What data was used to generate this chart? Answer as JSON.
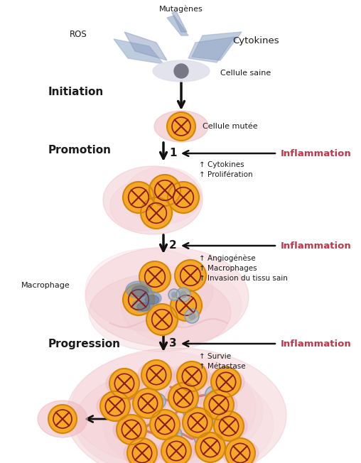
{
  "bg_color": "#ffffff",
  "figsize": [
    5.08,
    6.52
  ],
  "dpi": 100,
  "labels": {
    "mutagenes": "Mutagènes",
    "ros": "ROS",
    "cytokines_top": "Cytokines",
    "cellule_saine": "Cellule saine",
    "initiation": "Initiation",
    "cellule_mutee": "Cellule mutée",
    "promotion": "Promotion",
    "inflammation1": "Inflammation",
    "inflam1_items": [
      "↑ Cytokines",
      "↑ Prolifération"
    ],
    "inflammation2": "Inflammation",
    "inflam2_items": [
      "↑ Angiogénèse",
      "↑ Macrophages",
      "↑ Invasion du tissu sain"
    ],
    "macrophage": "Macrophage",
    "progression": "Progression",
    "inflammation3": "Inflammation",
    "inflam3_items": [
      "↑ Survie",
      "↑ Métastase"
    ],
    "step1": "1",
    "step2": "2",
    "step3": "3"
  },
  "colors": {
    "cell_orange": "#F5A827",
    "cell_border": "#D4860A",
    "cell_pink_bg": "#EDB8C0",
    "cell_pink_bg2": "#F5CDD5",
    "x_mark": "#8B1A1A",
    "inner_ring": "#B05010",
    "arrow_black": "#111111",
    "inflammation_red": "#C0364A",
    "text_black": "#1a1a1a",
    "macrophage_blue": "#7799BB",
    "macrophage_blue2": "#556688",
    "grey_cell": "#8899AA",
    "grey_cell2": "#AABBCC",
    "blood_vessel": "#CC6655",
    "wing_color": "#AABBD4",
    "wing_dark": "#8899C0",
    "nucleus_color": "#777788",
    "halo_color": "#E0E0EC"
  }
}
